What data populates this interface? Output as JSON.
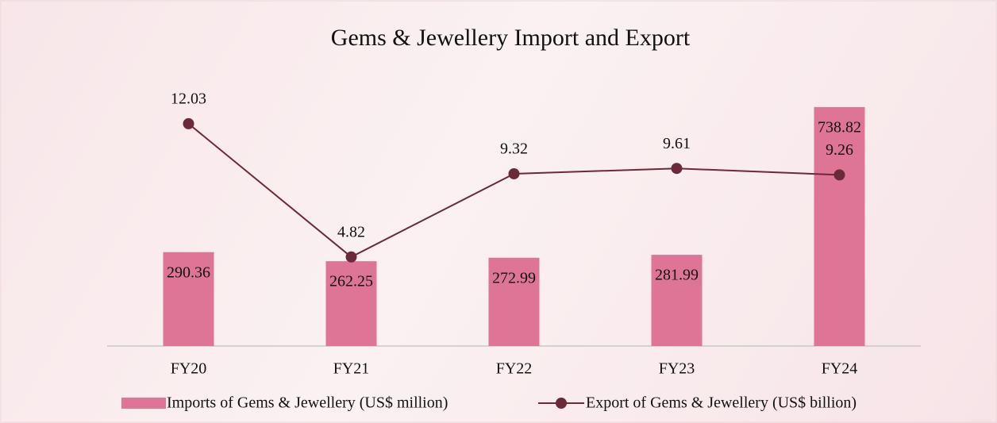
{
  "chart_data": {
    "type": "bar_line",
    "title": "Gems & Jewellery Import and Export",
    "categories": [
      "FY20",
      "FY21",
      "FY22",
      "FY23",
      "FY24"
    ],
    "series": [
      {
        "name": "Imports of Gems & Jewellery (US$ million)",
        "type": "bar",
        "color": "#de7596",
        "values": [
          290.36,
          262.25,
          272.99,
          281.99,
          738.82
        ]
      },
      {
        "name": "Export of Gems & Jewellery (US$ billion)",
        "type": "line",
        "axis": "y2",
        "color": "#6b2a3a",
        "values": [
          12.03,
          4.82,
          9.32,
          9.61,
          9.26
        ]
      }
    ],
    "ylim": [
      0,
      800
    ],
    "y2lim": [
      0,
      14
    ],
    "legend": "bottom"
  }
}
